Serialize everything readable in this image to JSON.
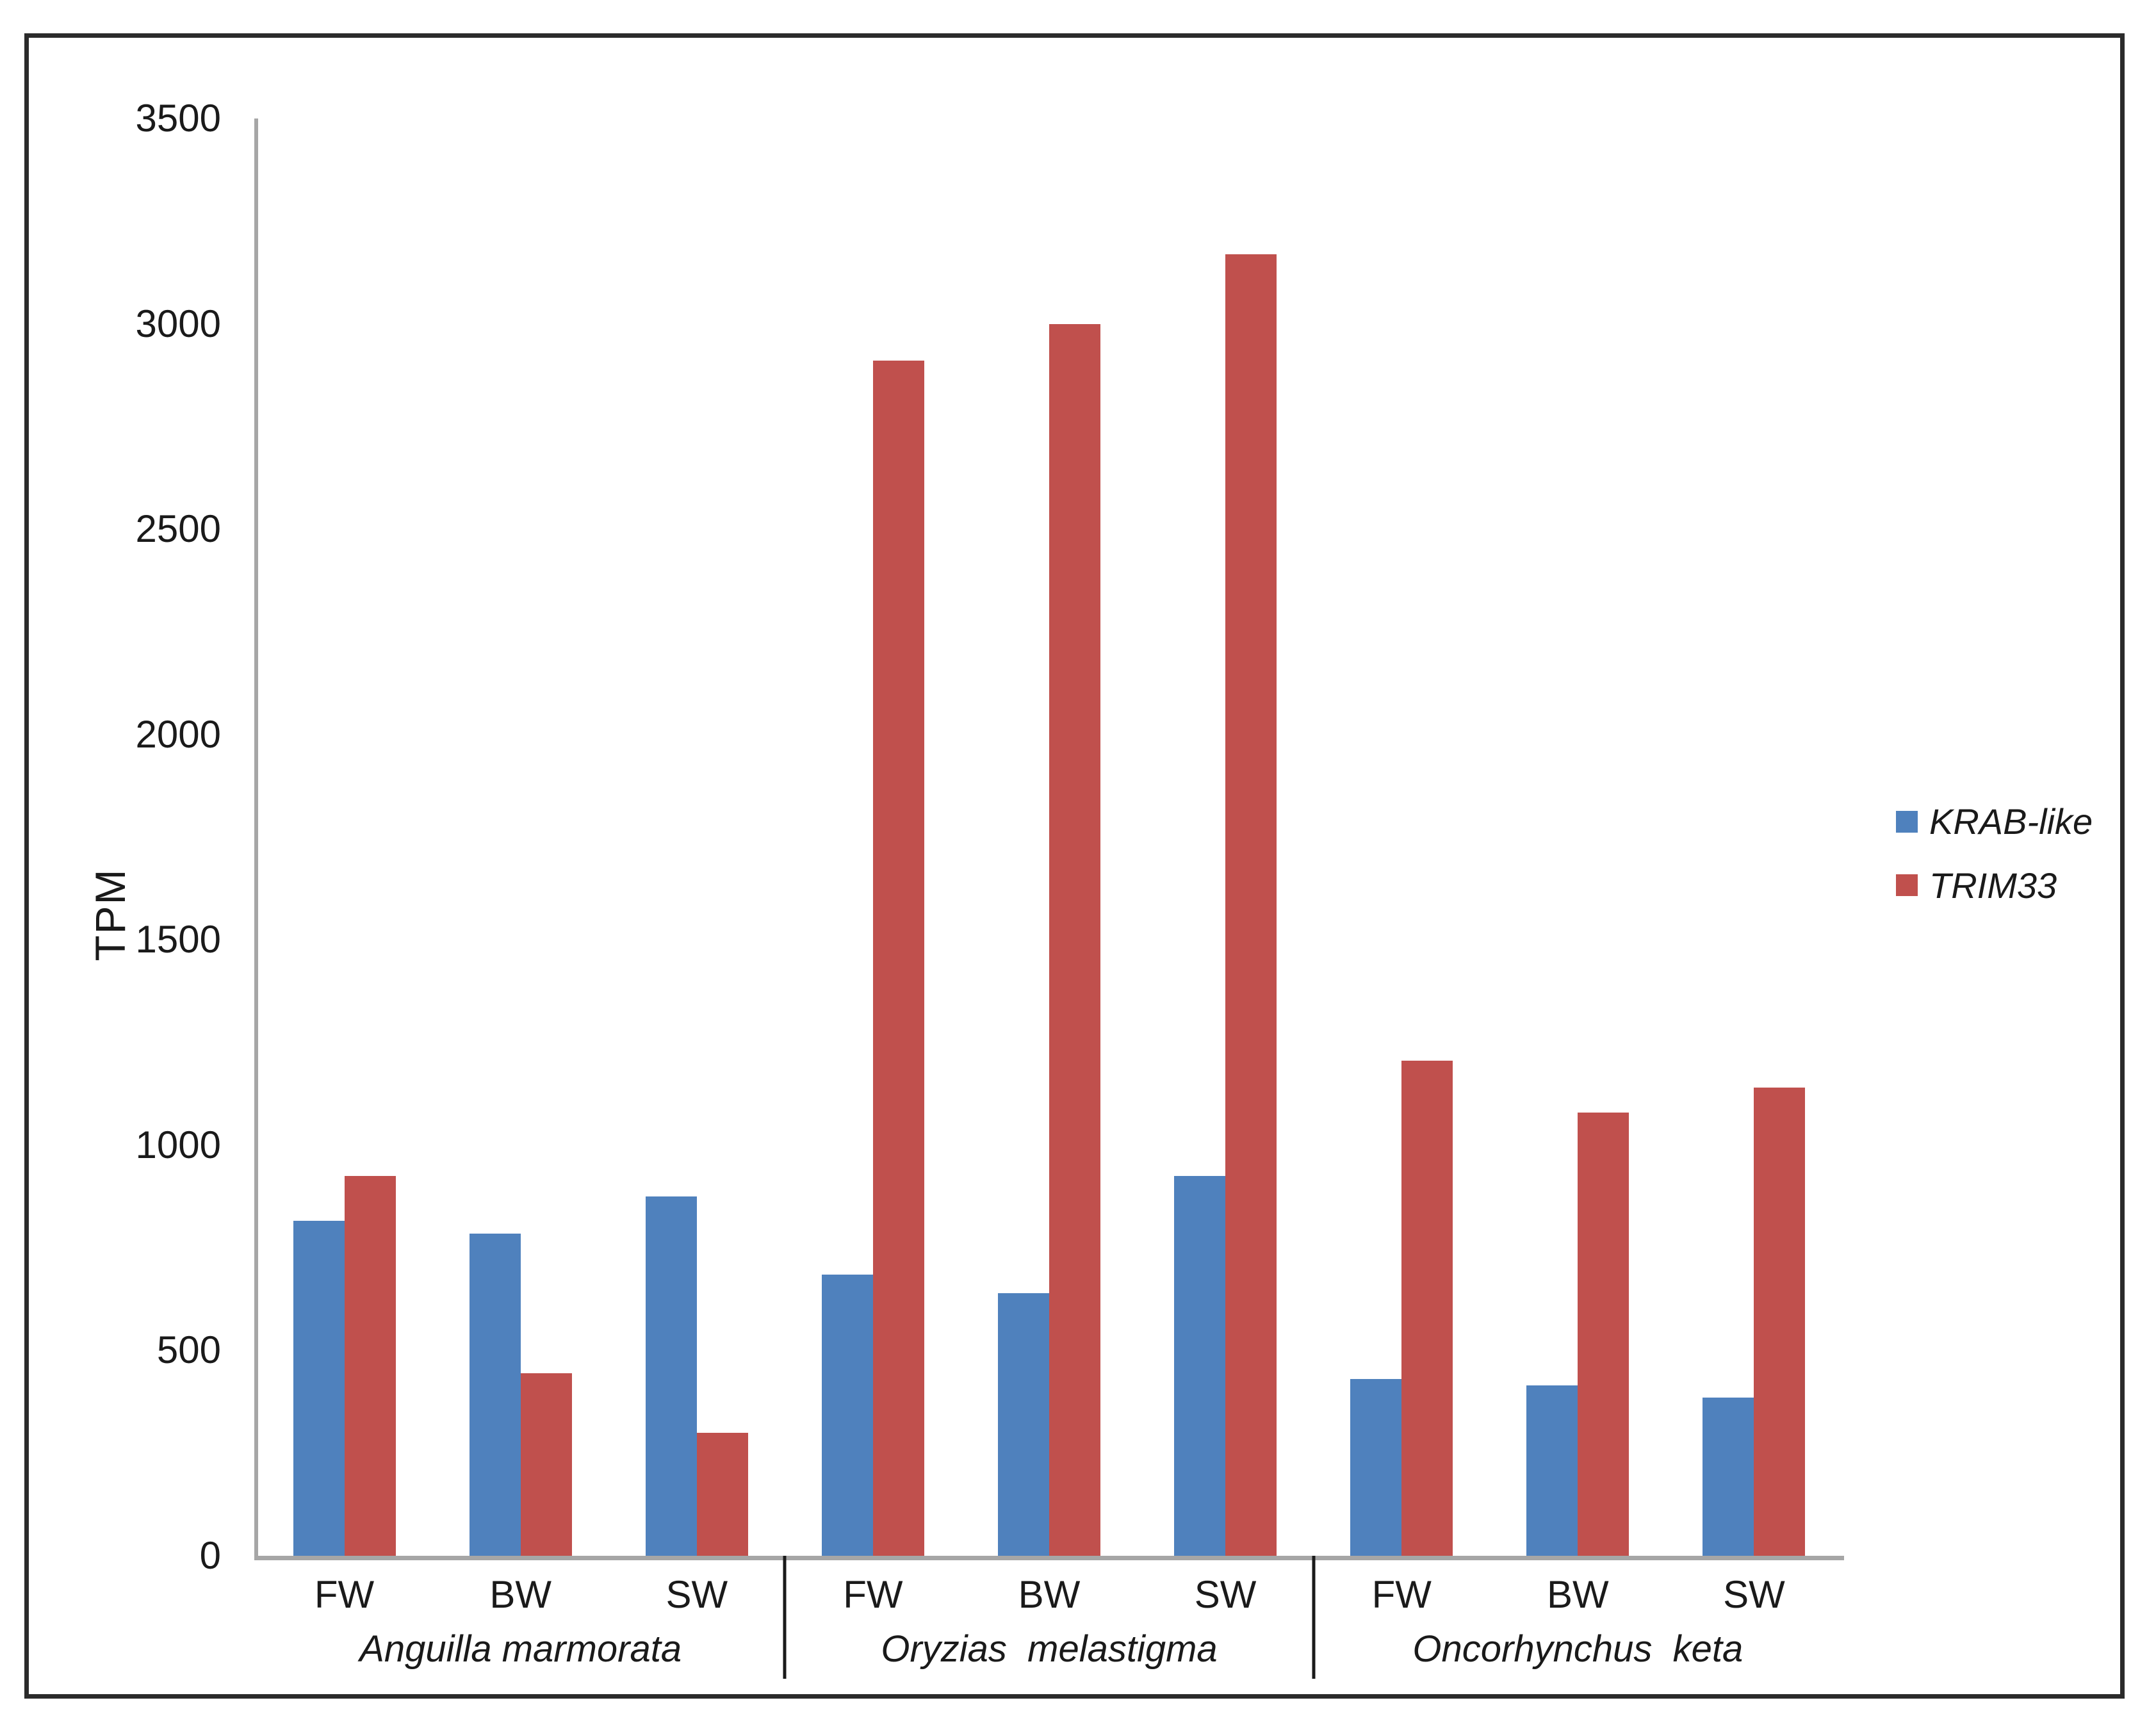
{
  "figure": {
    "background": "#ffffff",
    "border_color": "#2b2b2b"
  },
  "chart_data": {
    "type": "bar",
    "title": "",
    "xlabel": "",
    "ylabel": "TPM",
    "ylim": [
      0,
      3500
    ],
    "y_ticks": [
      0,
      500,
      1000,
      1500,
      2000,
      2500,
      3000,
      3500
    ],
    "grid": false,
    "legend_position": "right-middle",
    "categories": [
      "FW",
      "BW",
      "SW",
      "FW",
      "BW",
      "SW",
      "FW",
      "BW",
      "SW"
    ],
    "groups": [
      {
        "species": "Anguilla marmorata",
        "conditions": [
          "FW",
          "BW",
          "SW"
        ]
      },
      {
        "species": "Oryzias  melastigma",
        "conditions": [
          "FW",
          "BW",
          "SW"
        ]
      },
      {
        "species": "Oncorhynchus  keta",
        "conditions": [
          "FW",
          "BW",
          "SW"
        ]
      }
    ],
    "series": [
      {
        "name": "KRAB-like",
        "color": "#4F81BD",
        "values": [
          815,
          785,
          875,
          685,
          640,
          925,
          430,
          415,
          385
        ]
      },
      {
        "name": "TRIM33",
        "color": "#C0504D",
        "values": [
          925,
          445,
          300,
          2910,
          3000,
          3170,
          1205,
          1080,
          1140
        ]
      }
    ],
    "colors": {
      "axis_line": "#A6A6A6",
      "text": "#1A1A1A",
      "group_divider": "#1A1A1A",
      "frame_border": "#2B2B2B"
    }
  }
}
